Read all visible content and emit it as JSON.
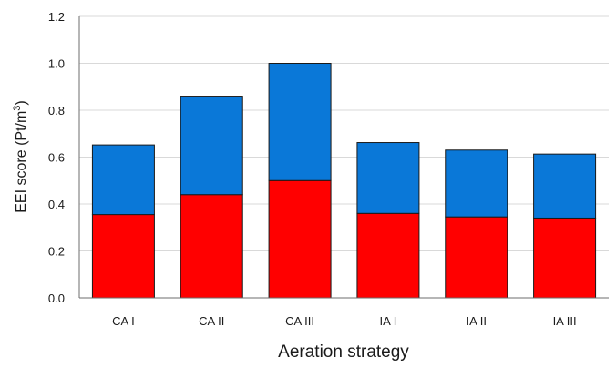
{
  "chart_data": {
    "type": "bar",
    "stacked": true,
    "categories": [
      "CA I",
      "CA II",
      "CA III",
      "IA I",
      "IA II",
      "IA III"
    ],
    "series": [
      {
        "color": "#ff0000",
        "values": [
          0.355,
          0.44,
          0.5,
          0.36,
          0.345,
          0.34
        ]
      },
      {
        "color": "#0a78d8",
        "values": [
          0.297,
          0.42,
          0.5,
          0.302,
          0.285,
          0.273
        ]
      }
    ],
    "xlabel": "Aeration strategy",
    "ylabel": {
      "main": "EEI score (Pt/m",
      "superscript": "3",
      "close": ")"
    },
    "ylim": [
      0,
      1.2
    ],
    "yticks": [
      "0.0",
      "0.2",
      "0.4",
      "0.6",
      "0.8",
      "1.0",
      "1.2"
    ],
    "grid": true,
    "legend": "none"
  }
}
